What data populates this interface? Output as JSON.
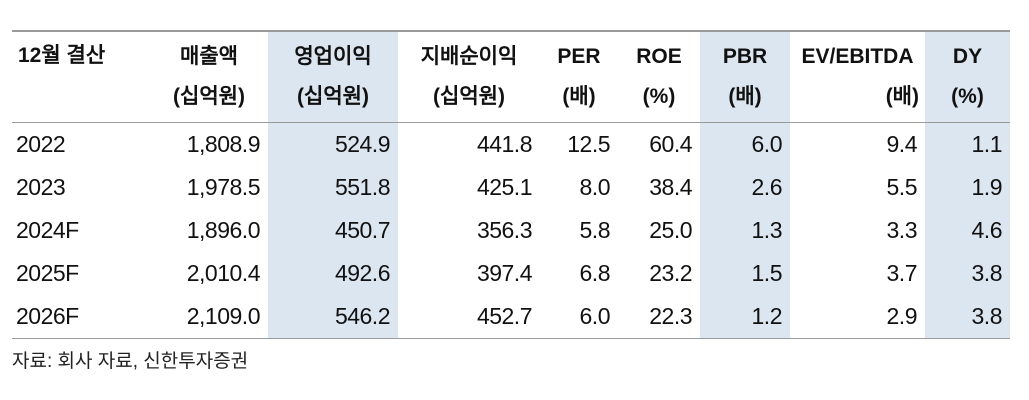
{
  "table": {
    "columns": [
      {
        "label": "12월 결산"
      },
      {
        "label": "매출액",
        "unit": "(십억원)"
      },
      {
        "label": "영업이익",
        "unit": "(십억원)"
      },
      {
        "label": "지배순이익",
        "unit": "(십억원)"
      },
      {
        "label": "PER",
        "unit": "(배)"
      },
      {
        "label": "ROE",
        "unit": "(%)"
      },
      {
        "label": "PBR",
        "unit": "(배)"
      },
      {
        "label": "EV/EBITDA",
        "unit": "(배)"
      },
      {
        "label": "DY",
        "unit": "(%)"
      }
    ],
    "rows": [
      [
        "2022",
        "1,808.9",
        "524.9",
        "441.8",
        "12.5",
        "60.4",
        "6.0",
        "9.4",
        "1.1"
      ],
      [
        "2023",
        "1,978.5",
        "551.8",
        "425.1",
        "8.0",
        "38.4",
        "2.6",
        "5.5",
        "1.9"
      ],
      [
        "2024F",
        "1,896.0",
        "450.7",
        "356.3",
        "5.8",
        "25.0",
        "1.3",
        "3.3",
        "4.6"
      ],
      [
        "2025F",
        "2,010.4",
        "492.6",
        "397.4",
        "6.8",
        "23.2",
        "1.5",
        "3.7",
        "3.8"
      ],
      [
        "2026F",
        "2,109.0",
        "546.2",
        "452.7",
        "6.0",
        "22.3",
        "1.2",
        "2.9",
        "3.8"
      ]
    ],
    "source": "자료: 회사 자료, 신한투자증권"
  }
}
